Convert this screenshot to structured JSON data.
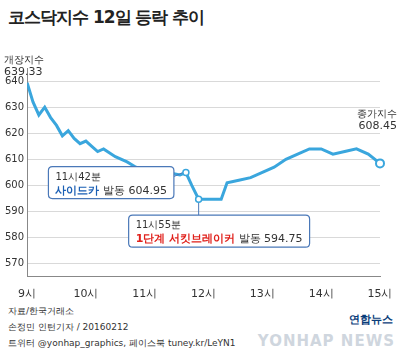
{
  "chart_data": {
    "type": "line",
    "title": "코스닥지수 12일 등락 추이",
    "x": [
      9.0,
      9.1,
      9.2,
      9.3,
      9.4,
      9.5,
      9.6,
      9.7,
      9.8,
      9.9,
      10.0,
      10.1,
      10.2,
      10.3,
      10.5,
      10.7,
      10.85,
      11.0,
      11.2,
      11.4,
      11.5,
      11.6,
      11.7,
      11.8,
      11.9167,
      12.0,
      12.3,
      12.4,
      12.6,
      12.8,
      13.0,
      13.2,
      13.4,
      13.6,
      13.8,
      14.0,
      14.2,
      14.4,
      14.6,
      14.8,
      15.0
    ],
    "values": [
      639.33,
      632,
      627,
      630,
      626,
      623,
      619,
      621,
      618,
      616,
      617,
      615,
      613,
      614,
      611,
      609,
      607,
      606,
      605,
      604,
      604.5,
      604,
      604.95,
      600,
      594.75,
      594.75,
      594.75,
      601,
      602,
      603,
      605,
      607,
      610,
      612,
      614,
      614,
      612,
      613,
      614,
      612,
      608.45
    ],
    "color": "#3aa6dd",
    "xlim": [
      9,
      15
    ],
    "xticks": [
      {
        "value": 9,
        "label": "9시"
      },
      {
        "value": 10,
        "label": "10시"
      },
      {
        "value": 11,
        "label": "11시"
      },
      {
        "value": 12,
        "label": "12시"
      },
      {
        "value": 13,
        "label": "13시"
      },
      {
        "value": 14,
        "label": "14시"
      },
      {
        "value": 15,
        "label": "15시"
      }
    ],
    "ylim": [
      565,
      645
    ],
    "yticks": [
      570,
      580,
      590,
      600,
      610,
      620,
      630,
      640
    ],
    "grid": true,
    "annotations": [
      {
        "x": 9,
        "value": 639.33,
        "label": "개장지수"
      },
      {
        "x": 11.7,
        "value": 604.95,
        "time": "11시42분",
        "label": "사이드카",
        "suffix": "발동",
        "color": "#1a5fb4"
      },
      {
        "x": 11.9167,
        "value": 594.75,
        "time": "11시55분",
        "label": "1단계 서킷브레이커",
        "suffix": "발동",
        "color": "#e0201b"
      },
      {
        "x": 15,
        "value": 608.45,
        "label": "종가지수"
      }
    ]
  },
  "footer": {
    "source": "자료/한국거래소",
    "credit": "손정민 인턴기자 / 20160212",
    "sns": "트위터 @yonhap_graphics, 페이스북 tuney.kr/LeYN1",
    "logo": "연합뉴스",
    "watermark": "YONHAP NEWS"
  }
}
